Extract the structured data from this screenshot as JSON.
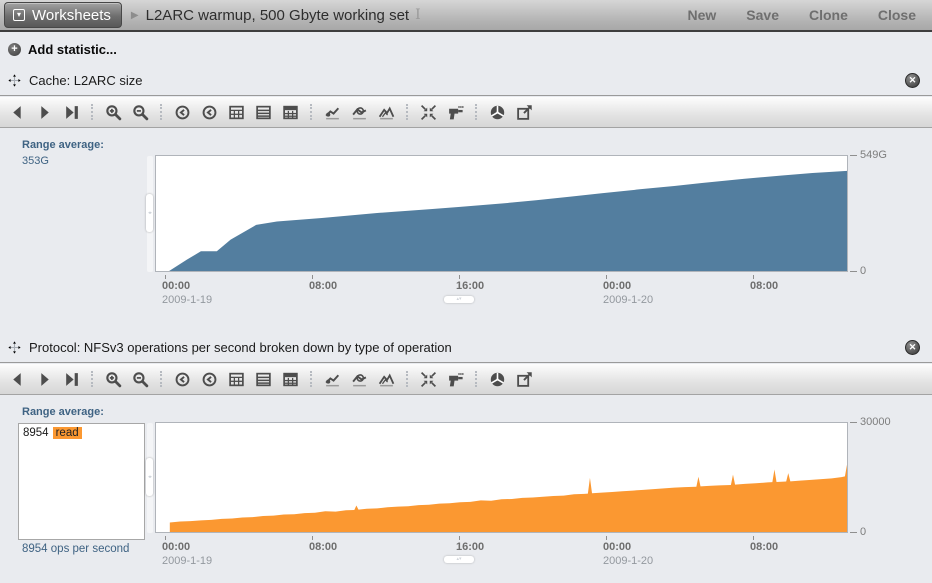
{
  "topbar": {
    "app_button": "Worksheets",
    "title": "L2ARC warmup, 500 Gbyte working set",
    "actions": [
      "New",
      "Save",
      "Clone",
      "Close"
    ]
  },
  "add_statistic": {
    "label": "Add statistic..."
  },
  "colors": {
    "page_bg": "#e9ebef",
    "accent_blue": "#537e9f",
    "accent_orange": "#fb9831",
    "range_text": "#3f6383"
  },
  "toolbar": {
    "icons": [
      "back",
      "forward",
      "forward-to-present",
      "|",
      "zoom-in",
      "zoom-out",
      "|",
      "show-minute",
      "show-hour",
      "show-day",
      "show-week",
      "show-month",
      "|",
      "show-minimum",
      "show-maximum",
      "show-line-graph",
      "|",
      "crop-outliers",
      "drilldown",
      "|",
      "quantize",
      "export"
    ]
  },
  "statistics": [
    {
      "title": "Cache: L2ARC size",
      "range_average_label": "Range average:",
      "range_average_value": "353G"
    },
    {
      "title": "Protocol: NFSv3 operations per second broken down by type of operation",
      "range_average_label": "Range average:",
      "legend": {
        "value": "8954",
        "name": "read"
      },
      "caption": "8954 ops per second"
    }
  ],
  "chart_data": [
    {
      "type": "area",
      "title": "Cache: L2ARC size",
      "series_name": "L2ARC size",
      "unit": "G",
      "color": "#537e9f",
      "ymax": 549,
      "y_max_label": "549G",
      "y_min_label": "0",
      "range_average": "353G",
      "x_ticks": [
        {
          "pos": 0.0144,
          "label": "00:00",
          "date": "2009-1-19"
        },
        {
          "pos": 0.2266,
          "label": "08:00"
        },
        {
          "pos": 0.4387,
          "label": "16:00"
        },
        {
          "pos": 0.6508,
          "label": "00:00",
          "date": "2009-1-20"
        },
        {
          "pos": 0.8629,
          "label": "08:00"
        }
      ],
      "points": [
        [
          0.019,
          0
        ],
        [
          0.045,
          55
        ],
        [
          0.065,
          94
        ],
        [
          0.088,
          94
        ],
        [
          0.108,
          150
        ],
        [
          0.145,
          220
        ],
        [
          0.175,
          236
        ],
        [
          0.24,
          253
        ],
        [
          0.32,
          277
        ],
        [
          0.4,
          296
        ],
        [
          0.44,
          306
        ],
        [
          0.5,
          322
        ],
        [
          0.55,
          338
        ],
        [
          0.6,
          355
        ],
        [
          0.645,
          371
        ],
        [
          0.7,
          390
        ],
        [
          0.75,
          406
        ],
        [
          0.79,
          420
        ],
        [
          0.85,
          440
        ],
        [
          0.906,
          456
        ],
        [
          0.95,
          468
        ],
        [
          0.98,
          474
        ],
        [
          1.0,
          478
        ]
      ]
    },
    {
      "type": "area",
      "title": "Protocol: NFSv3 operations per second broken down by type of operation",
      "series_name": "read",
      "unit": "ops per second",
      "color": "#fb9831",
      "ymax": 30000,
      "y_max_label": "30000",
      "y_min_label": "0",
      "range_average": "8954",
      "x_ticks": [
        {
          "pos": 0.0144,
          "label": "00:00",
          "date": "2009-1-19"
        },
        {
          "pos": 0.2266,
          "label": "08:00"
        },
        {
          "pos": 0.4387,
          "label": "16:00"
        },
        {
          "pos": 0.6508,
          "label": "00:00",
          "date": "2009-1-20"
        },
        {
          "pos": 0.8629,
          "label": "08:00"
        }
      ],
      "points": [
        [
          0.02,
          2600
        ],
        [
          0.035,
          2900
        ],
        [
          0.05,
          3000
        ],
        [
          0.065,
          3200
        ],
        [
          0.08,
          3350
        ],
        [
          0.095,
          3600
        ],
        [
          0.11,
          3700
        ],
        [
          0.125,
          4000
        ],
        [
          0.14,
          4100
        ],
        [
          0.155,
          4400
        ],
        [
          0.17,
          4500
        ],
        [
          0.185,
          4800
        ],
        [
          0.2,
          4900
        ],
        [
          0.215,
          5200
        ],
        [
          0.23,
          5300
        ],
        [
          0.245,
          5700
        ],
        [
          0.26,
          5600
        ],
        [
          0.275,
          6000
        ],
        [
          0.287,
          6050
        ],
        [
          0.29,
          7300
        ],
        [
          0.293,
          6150
        ],
        [
          0.305,
          6400
        ],
        [
          0.32,
          6500
        ],
        [
          0.335,
          6800
        ],
        [
          0.35,
          7000
        ],
        [
          0.365,
          7100
        ],
        [
          0.38,
          7400
        ],
        [
          0.395,
          7500
        ],
        [
          0.41,
          7800
        ],
        [
          0.425,
          7900
        ],
        [
          0.44,
          8200
        ],
        [
          0.455,
          8300
        ],
        [
          0.47,
          8700
        ],
        [
          0.485,
          8600
        ],
        [
          0.5,
          9000
        ],
        [
          0.515,
          9100
        ],
        [
          0.53,
          9400
        ],
        [
          0.545,
          9500
        ],
        [
          0.56,
          9700
        ],
        [
          0.575,
          9900
        ],
        [
          0.59,
          10000
        ],
        [
          0.605,
          10400
        ],
        [
          0.62,
          10500
        ],
        [
          0.625,
          10550
        ],
        [
          0.628,
          14900
        ],
        [
          0.631,
          10650
        ],
        [
          0.645,
          10850
        ],
        [
          0.66,
          11000
        ],
        [
          0.675,
          11200
        ],
        [
          0.69,
          11400
        ],
        [
          0.705,
          11600
        ],
        [
          0.72,
          11800
        ],
        [
          0.735,
          12000
        ],
        [
          0.75,
          12200
        ],
        [
          0.765,
          12350
        ],
        [
          0.782,
          12450
        ],
        [
          0.785,
          15200
        ],
        [
          0.788,
          12550
        ],
        [
          0.8,
          12700
        ],
        [
          0.815,
          12850
        ],
        [
          0.832,
          12950
        ],
        [
          0.835,
          15800
        ],
        [
          0.838,
          13050
        ],
        [
          0.852,
          13250
        ],
        [
          0.868,
          13400
        ],
        [
          0.885,
          13650
        ],
        [
          0.892,
          13720
        ],
        [
          0.895,
          17200
        ],
        [
          0.898,
          13760
        ],
        [
          0.912,
          13900
        ],
        [
          0.915,
          16200
        ],
        [
          0.918,
          13950
        ],
        [
          0.932,
          14150
        ],
        [
          0.948,
          14350
        ],
        [
          0.963,
          14550
        ],
        [
          0.978,
          14750
        ],
        [
          0.992,
          15100
        ],
        [
          0.997,
          15300
        ],
        [
          1.0,
          18500
        ]
      ]
    }
  ]
}
